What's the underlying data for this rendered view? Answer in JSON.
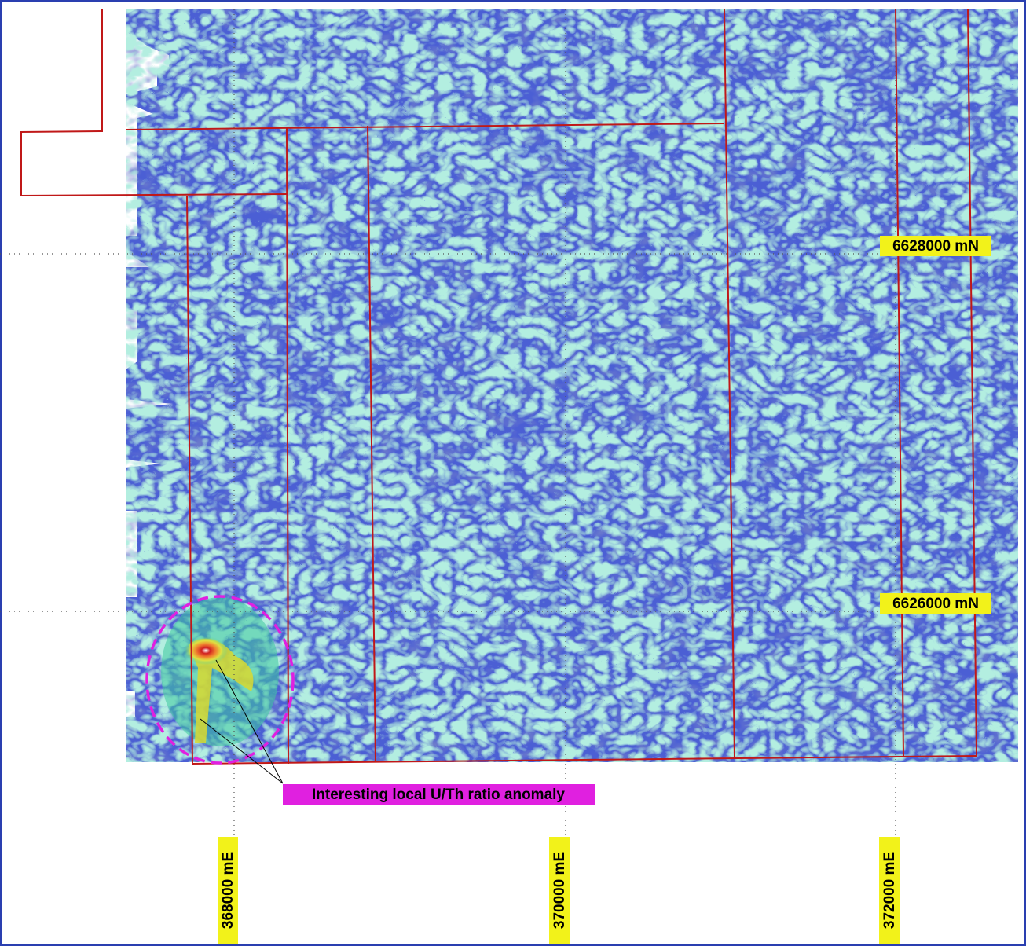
{
  "map": {
    "northings": [
      "6628000 mN",
      "6626000 mN"
    ],
    "eastings": [
      "368000 mE",
      "370000 mE",
      "372000 mE"
    ],
    "annotation": "Interesting local U/Th ratio anomaly"
  }
}
